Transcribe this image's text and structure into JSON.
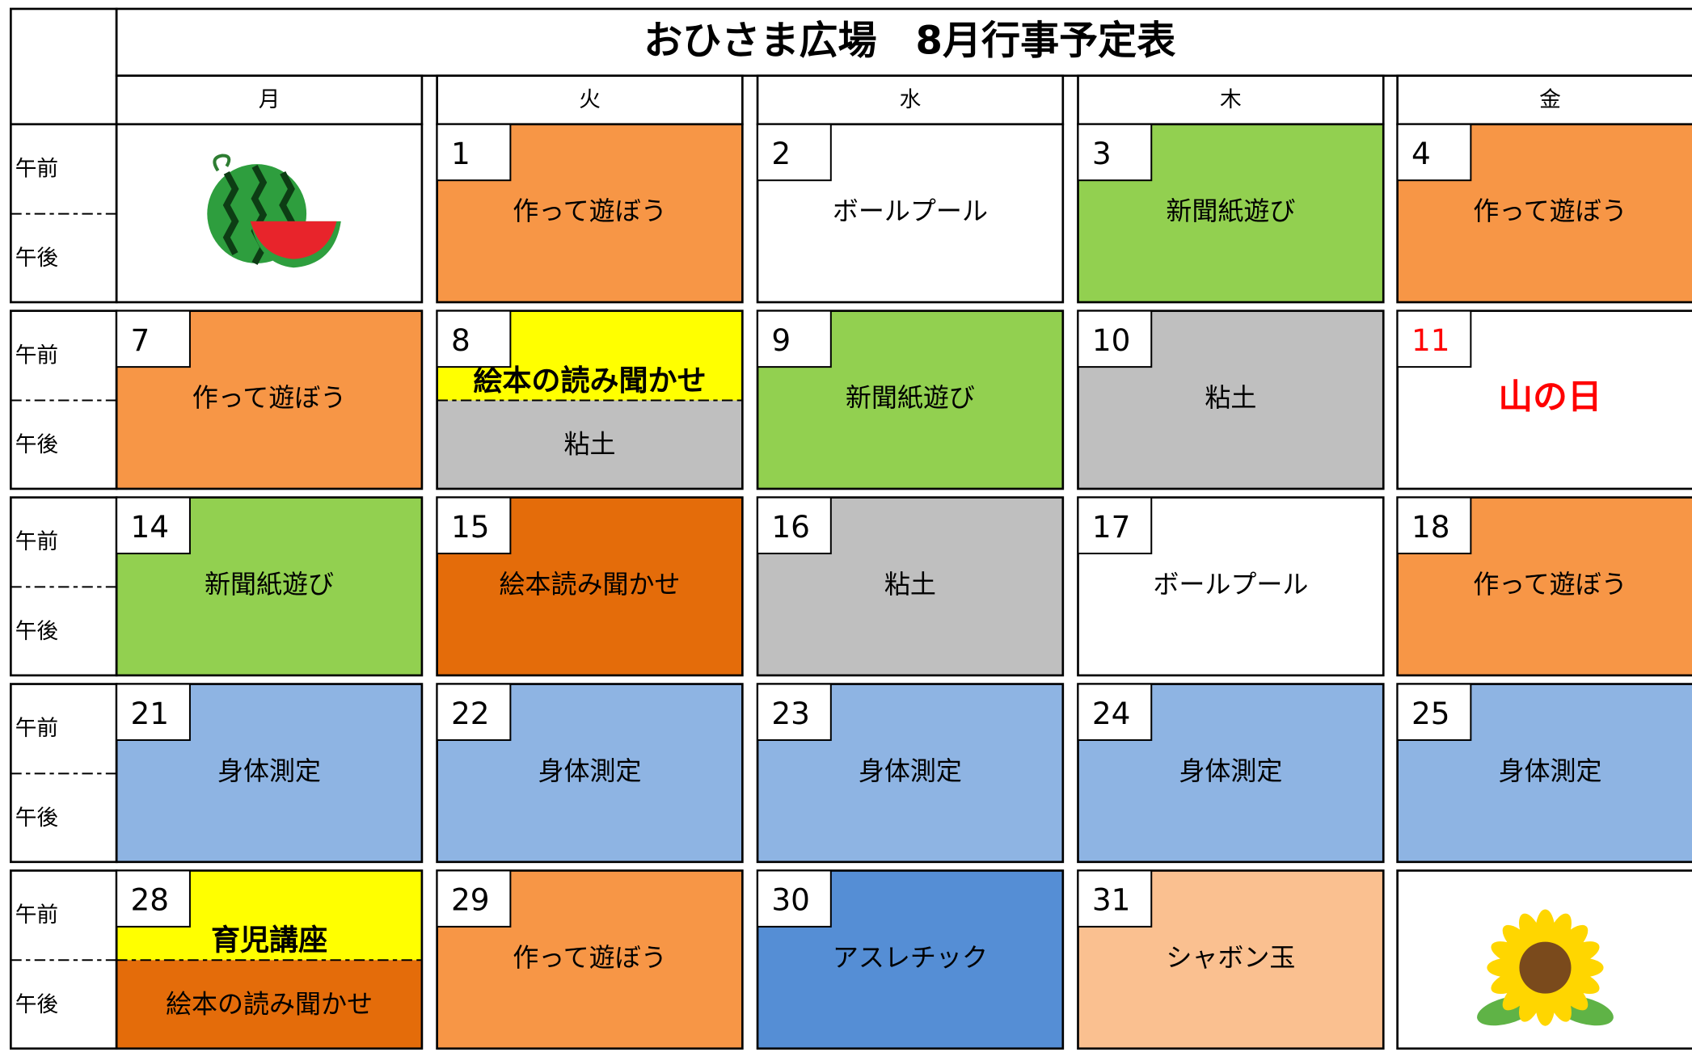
{
  "header": {
    "title": "おひさま広場　8月行事予定表"
  },
  "weekdays": [
    "月",
    "火",
    "水",
    "木",
    "金"
  ],
  "periods": [
    "午前",
    "午後"
  ],
  "weeks": [
    {
      "days": [
        null,
        {
          "day": "1",
          "events": [
            {
              "label": "作って遊ぼう",
              "color": "#f79646"
            }
          ]
        },
        {
          "day": "2",
          "events": [
            {
              "label": "ボールプール",
              "color": "#ffffff"
            }
          ]
        },
        {
          "day": "3",
          "events": [
            {
              "label": "新聞紙遊び",
              "color": "#92d050"
            }
          ]
        },
        {
          "day": "4",
          "events": [
            {
              "label": "作って遊ぼう",
              "color": "#f79646"
            }
          ]
        }
      ]
    },
    {
      "days": [
        {
          "day": "7",
          "events": [
            {
              "label": "作って遊ぼう",
              "color": "#f79646"
            }
          ]
        },
        {
          "day": "8",
          "events": [
            {
              "label": "絵本の読み聞かせ",
              "color": "#ffff00",
              "bold": true
            },
            {
              "label": "粘土",
              "color": "#bfbfbf"
            }
          ]
        },
        {
          "day": "9",
          "events": [
            {
              "label": "新聞紙遊び",
              "color": "#92d050"
            }
          ]
        },
        {
          "day": "10",
          "events": [
            {
              "label": "粘土",
              "color": "#bfbfbf"
            }
          ]
        },
        {
          "day": "11",
          "day_color": "#ff0000",
          "events": [
            {
              "label": "山の日",
              "color": "#ffffff",
              "text_color": "#ff0000",
              "bold": true
            }
          ]
        }
      ]
    },
    {
      "days": [
        {
          "day": "14",
          "events": [
            {
              "label": "新聞紙遊び",
              "color": "#92d050"
            }
          ]
        },
        {
          "day": "15",
          "events": [
            {
              "label": "絵本読み聞かせ",
              "color": "#e46c0a"
            }
          ]
        },
        {
          "day": "16",
          "events": [
            {
              "label": "粘土",
              "color": "#bfbfbf"
            }
          ]
        },
        {
          "day": "17",
          "events": [
            {
              "label": "ボールプール",
              "color": "#ffffff"
            }
          ]
        },
        {
          "day": "18",
          "events": [
            {
              "label": "作って遊ぼう",
              "color": "#f79646"
            }
          ]
        }
      ]
    },
    {
      "days": [
        {
          "day": "21",
          "events": [
            {
              "label": "身体測定",
              "color": "#8eb4e3"
            }
          ]
        },
        {
          "day": "22",
          "events": [
            {
              "label": "身体測定",
              "color": "#8eb4e3"
            }
          ]
        },
        {
          "day": "23",
          "events": [
            {
              "label": "身体測定",
              "color": "#8eb4e3"
            }
          ]
        },
        {
          "day": "24",
          "events": [
            {
              "label": "身体測定",
              "color": "#8eb4e3"
            }
          ]
        },
        {
          "day": "25",
          "events": [
            {
              "label": "身体測定",
              "color": "#8eb4e3"
            }
          ]
        }
      ]
    },
    {
      "days": [
        {
          "day": "28",
          "events": [
            {
              "label": "育児講座",
              "color": "#ffff00",
              "bold": true
            },
            {
              "label": "絵本の読み聞かせ",
              "color": "#e46c0a"
            }
          ]
        },
        {
          "day": "29",
          "events": [
            {
              "label": "作って遊ぼう",
              "color": "#f79646"
            }
          ]
        },
        {
          "day": "30",
          "events": [
            {
              "label": "アスレチック",
              "color": "#558ed5"
            }
          ]
        },
        {
          "day": "31",
          "events": [
            {
              "label": "シャボン玉",
              "color": "#fac090"
            }
          ]
        },
        null
      ]
    }
  ]
}
